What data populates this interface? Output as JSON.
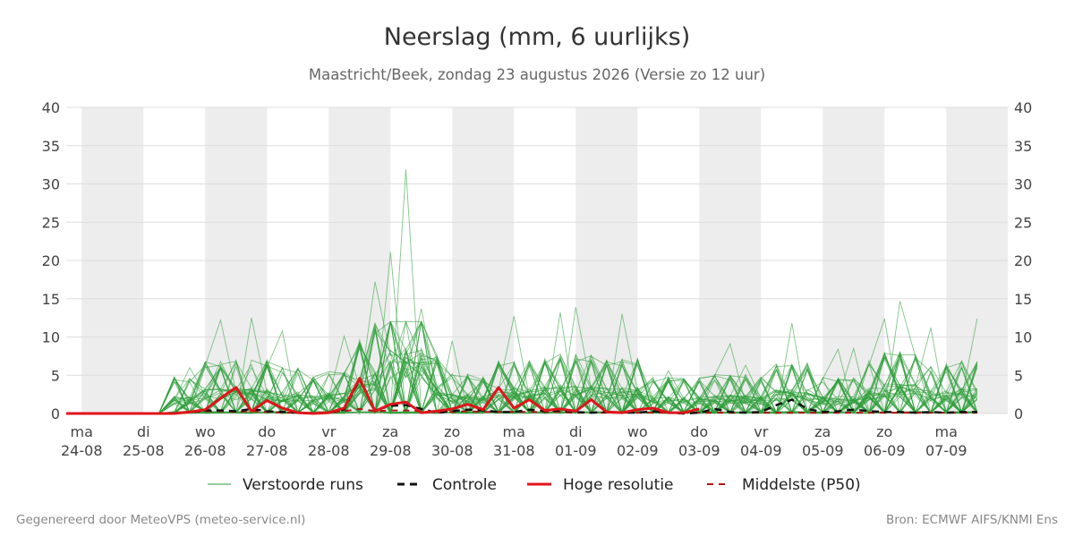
{
  "header": {
    "title": "Neerslag (mm, 6 uurlijks)",
    "subtitle": "Maastricht/Beek, zondag 23 augustus 2026 (Versie zo 12 uur)"
  },
  "footer": {
    "left": "Gegenereerd door MeteoVPS (meteo-service.nl)",
    "right": "Bron: ECMWF AIFS/KNMI Ens"
  },
  "colors": {
    "ensemble": "#2e9e3a",
    "control": "#111111",
    "hires": "#e0141b",
    "median": "#b01414",
    "band": "#ededed",
    "grid": "#dddddd"
  },
  "chart_data": {
    "type": "line",
    "title": "Neerslag (mm, 6 uurlijks)",
    "ylim": [
      0,
      40
    ],
    "yticks": [
      0,
      5,
      10,
      15,
      20,
      25,
      30,
      35,
      40
    ],
    "y_axis_both_sides": true,
    "x_unit": "days since ma 24-08 00h",
    "xlim": [
      -0.25,
      14.5
    ],
    "x_day_labels": [
      {
        "weekday": "ma",
        "date": "24-08"
      },
      {
        "weekday": "di",
        "date": "25-08"
      },
      {
        "weekday": "wo",
        "date": "26-08"
      },
      {
        "weekday": "do",
        "date": "27-08"
      },
      {
        "weekday": "vr",
        "date": "28-08"
      },
      {
        "weekday": "za",
        "date": "29-08"
      },
      {
        "weekday": "zo",
        "date": "30-08"
      },
      {
        "weekday": "ma",
        "date": "31-08"
      },
      {
        "weekday": "di",
        "date": "01-09"
      },
      {
        "weekday": "wo",
        "date": "02-09"
      },
      {
        "weekday": "do",
        "date": "03-09"
      },
      {
        "weekday": "vr",
        "date": "04-09"
      },
      {
        "weekday": "za",
        "date": "05-09"
      },
      {
        "weekday": "zo",
        "date": "06-09"
      },
      {
        "weekday": "ma",
        "date": "07-09"
      }
    ],
    "shaded_days": [
      0,
      2,
      4,
      6,
      8,
      10,
      12,
      14
    ],
    "grid": true,
    "legend_position": "bottom",
    "legend": [
      "Verstoorde runs",
      "Controle",
      "Hoge resolutie",
      "Middelste (P50)"
    ],
    "series": [
      {
        "name": "Verstoorde runs",
        "kind": "ensemble",
        "style": "thin-green",
        "count": 50,
        "notable_peaks": [
          {
            "x": 1.75,
            "y": 6
          },
          {
            "x": 2.25,
            "y": 12.2
          },
          {
            "x": 2.75,
            "y": 12.5
          },
          {
            "x": 3.25,
            "y": 10.8
          },
          {
            "x": 4.25,
            "y": 10.1
          },
          {
            "x": 4.75,
            "y": 17.2
          },
          {
            "x": 5.0,
            "y": 21.1
          },
          {
            "x": 5.25,
            "y": 31.9
          },
          {
            "x": 5.5,
            "y": 13.7
          },
          {
            "x": 6.0,
            "y": 9.5
          },
          {
            "x": 7.0,
            "y": 12.7
          },
          {
            "x": 7.75,
            "y": 13.2
          },
          {
            "x": 8.0,
            "y": 13.9
          },
          {
            "x": 8.75,
            "y": 13.0
          },
          {
            "x": 9.5,
            "y": 5.6
          },
          {
            "x": 10.5,
            "y": 9.1
          },
          {
            "x": 10.75,
            "y": 6.3
          },
          {
            "x": 11.5,
            "y": 11.8
          },
          {
            "x": 12.25,
            "y": 8.4
          },
          {
            "x": 12.5,
            "y": 8.5
          },
          {
            "x": 13.0,
            "y": 12.4
          },
          {
            "x": 13.25,
            "y": 14.7
          },
          {
            "x": 13.75,
            "y": 11.2
          },
          {
            "x": 14.0,
            "y": 6.5
          },
          {
            "x": 14.5,
            "y": 12.4
          }
        ]
      },
      {
        "name": "Controle",
        "kind": "control",
        "style": "black-dashed",
        "x": [
          -0.25,
          0,
          0.25,
          0.5,
          0.75,
          1.0,
          1.25,
          1.5,
          1.75,
          2.0,
          2.25,
          2.5,
          2.75,
          3.0,
          3.25,
          3.5,
          3.75,
          4.0,
          4.25,
          4.5,
          4.75,
          5.0,
          5.25,
          5.5,
          5.75,
          6.0,
          6.25,
          6.5,
          6.75,
          7.0,
          7.25,
          7.5,
          7.75,
          8.0,
          8.25,
          8.5,
          8.75,
          9.0,
          9.25,
          9.5,
          9.75,
          10.0,
          10.25,
          10.5,
          10.75,
          11.0,
          11.25,
          11.5,
          11.75,
          12.0,
          12.25,
          12.5,
          12.75,
          13.0,
          13.25,
          13.5,
          13.75,
          14.0,
          14.25,
          14.5
        ],
        "values": [
          0,
          0,
          0,
          0,
          0,
          0,
          0,
          0,
          0.2,
          0.4,
          0.4,
          0.3,
          0.6,
          0.3,
          0.2,
          0.1,
          0,
          0.1,
          0.5,
          4.4,
          0.4,
          1.0,
          1.1,
          0.6,
          0.1,
          0.3,
          0.5,
          0.4,
          0.2,
          0.2,
          0.5,
          0.3,
          0.4,
          0.2,
          0.1,
          0.2,
          0.1,
          0.1,
          0.3,
          0.1,
          0,
          0.1,
          0.6,
          0.2,
          0.1,
          0.2,
          1.1,
          1.8,
          0.6,
          0.2,
          0.3,
          0.5,
          0.3,
          0.2,
          0.2,
          0.1,
          0.2,
          0.1,
          0.2,
          0.2
        ]
      },
      {
        "name": "Hoge resolutie",
        "kind": "hires",
        "style": "red-solid",
        "x": [
          -0.25,
          0,
          0.25,
          0.5,
          0.75,
          1.0,
          1.25,
          1.5,
          1.75,
          2.0,
          2.25,
          2.5,
          2.75,
          3.0,
          3.25,
          3.5,
          3.75,
          4.0,
          4.25,
          4.5,
          4.75,
          5.0,
          5.25,
          5.5,
          5.75,
          6.0,
          6.25,
          6.5,
          6.75,
          7.0,
          7.25,
          7.5,
          7.75,
          8.0,
          8.25,
          8.5,
          8.75,
          9.0,
          9.25,
          9.5,
          9.75,
          10.0
        ],
        "values": [
          0,
          0,
          0,
          0,
          0,
          0,
          0,
          0,
          0.2,
          0.5,
          2.0,
          3.4,
          0.3,
          1.7,
          0.7,
          0.1,
          0,
          0.1,
          0.7,
          4.6,
          0.3,
          1.2,
          1.5,
          0.1,
          0.3,
          0.6,
          1.2,
          0.5,
          3.4,
          0.7,
          1.8,
          0.4,
          0.6,
          0.3,
          1.8,
          0.2,
          0.1,
          0.5,
          0.7,
          0.1,
          0.1,
          0.6
        ]
      },
      {
        "name": "Middelste (P50)",
        "kind": "median",
        "style": "darkred-dashed",
        "x": [
          -0.25,
          0,
          0.25,
          0.5,
          0.75,
          1.0,
          1.25,
          1.5,
          1.75,
          2.0,
          2.25,
          2.5,
          2.75,
          3.0,
          3.25,
          3.5,
          3.75,
          4.0,
          4.25,
          4.5,
          4.75,
          5.0,
          5.25,
          5.5,
          5.75,
          6.0,
          6.25,
          6.5,
          6.75,
          7.0,
          7.25,
          7.5,
          7.75,
          8.0,
          8.25,
          8.5,
          8.75,
          9.0,
          9.25,
          9.5,
          9.75,
          10.0,
          10.25,
          10.5,
          10.75,
          11.0,
          11.25,
          11.5,
          11.75,
          12.0,
          12.25,
          12.5,
          12.75,
          13.0,
          13.25,
          13.5,
          13.75,
          14.0,
          14.25,
          14.5
        ],
        "values": [
          0,
          0,
          0,
          0,
          0,
          0,
          0,
          0,
          0.1,
          0.3,
          0.3,
          0.2,
          0.3,
          0.2,
          0.1,
          0.1,
          0,
          0.1,
          0.3,
          0.6,
          0.3,
          0.4,
          0.4,
          0.3,
          0.1,
          0.2,
          0.3,
          0.2,
          0.2,
          0.2,
          0.2,
          0.2,
          0.2,
          0.1,
          0.1,
          0.1,
          0.1,
          0.1,
          0.1,
          0.1,
          0.1,
          0.1,
          0.1,
          0.1,
          0.1,
          0.1,
          0.1,
          0.1,
          0.1,
          0.1,
          0.1,
          0.1,
          0.1,
          0.1,
          0.1,
          0.1,
          0.1,
          0.1,
          0.1,
          0.1
        ]
      }
    ]
  }
}
